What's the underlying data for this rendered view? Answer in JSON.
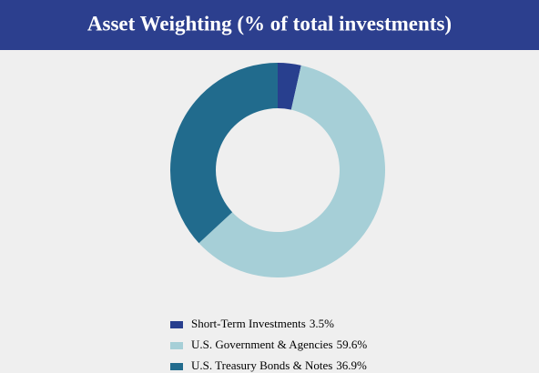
{
  "chart_data": {
    "type": "donut",
    "title": "Asset Weighting (% of total investments)",
    "categories": [
      "Short-Term Investments",
      "U.S. Government & Agencies",
      "U.S. Treasury Bonds & Notes"
    ],
    "values": [
      3.5,
      59.6,
      36.9
    ],
    "value_labels": [
      "3.5%",
      "59.6%",
      "36.9%"
    ],
    "colors": [
      "#283f8e",
      "#a6cfd7",
      "#216b8d"
    ],
    "legend": "bottom"
  }
}
